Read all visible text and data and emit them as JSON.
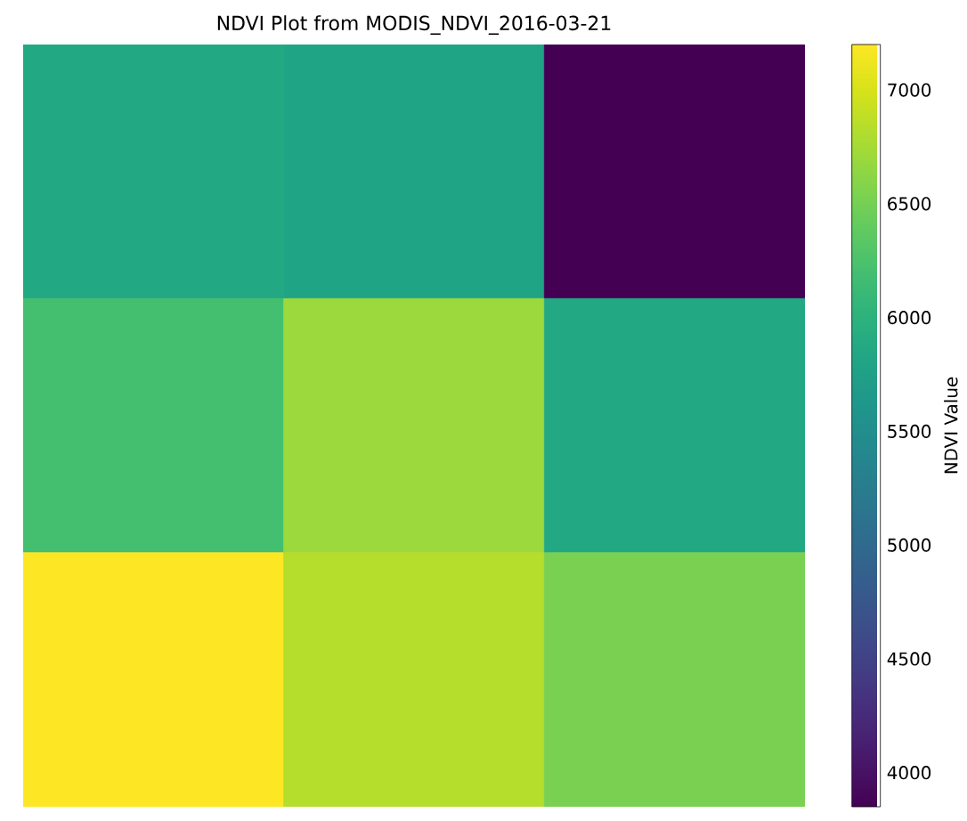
{
  "chart_data": {
    "type": "heatmap",
    "title": "NDVI Plot from MODIS_NDVI_2016-03-21",
    "categories": [
      null,
      null,
      null
    ],
    "y_categories": [
      null,
      null,
      null
    ],
    "cells": [
      [
        5860,
        5800,
        3850
      ],
      [
        6200,
        6700,
        5860
      ],
      [
        7200,
        6830,
        6530
      ]
    ],
    "clabel": "NDVI Value",
    "clim": [
      3850,
      7200
    ],
    "cticks": [
      4000,
      4500,
      5000,
      5500,
      6000,
      6500,
      7000
    ]
  }
}
